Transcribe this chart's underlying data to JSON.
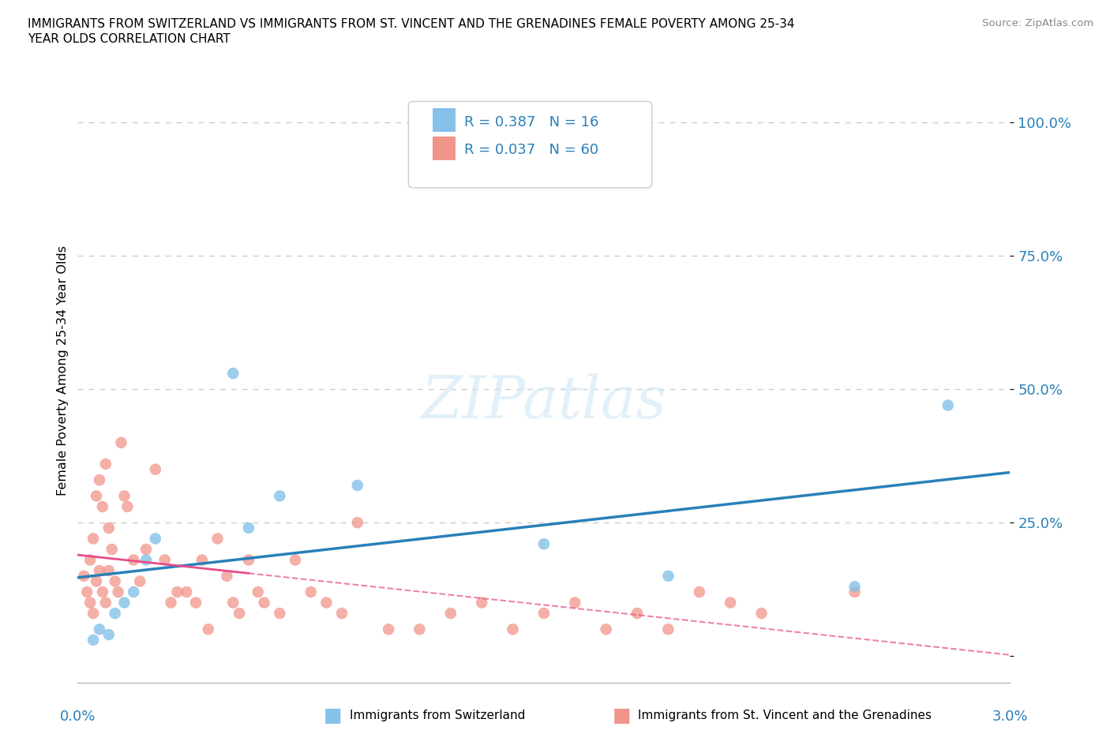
{
  "title_line1": "IMMIGRANTS FROM SWITZERLAND VS IMMIGRANTS FROM ST. VINCENT AND THE GRENADINES FEMALE POVERTY AMONG 25-34",
  "title_line2": "YEAR OLDS CORRELATION CHART",
  "source": "Source: ZipAtlas.com",
  "ylabel": "Female Poverty Among 25-34 Year Olds",
  "xlim": [
    0.0,
    3.0
  ],
  "ylim": [
    -5.0,
    112.0
  ],
  "watermark": "ZIPatlas",
  "legend_label1": "Immigrants from Switzerland",
  "legend_label2": "Immigrants from St. Vincent and the Grenadines",
  "R1": 0.387,
  "N1": 16,
  "R2": 0.037,
  "N2": 60,
  "color1": "#85c1e9",
  "color2": "#f1948a",
  "line_color1": "#2980b9",
  "line_color2": "#e74c8b",
  "swiss_x": [
    0.05,
    0.07,
    0.1,
    0.12,
    0.15,
    0.18,
    0.22,
    0.25,
    0.5,
    0.55,
    0.65,
    0.9,
    1.5,
    1.9,
    2.5,
    2.8
  ],
  "swiss_y": [
    3,
    5,
    4,
    8,
    10,
    12,
    18,
    22,
    53,
    24,
    30,
    32,
    21,
    15,
    13,
    47
  ],
  "stvincent_x": [
    0.02,
    0.03,
    0.04,
    0.04,
    0.05,
    0.05,
    0.06,
    0.06,
    0.07,
    0.07,
    0.08,
    0.08,
    0.09,
    0.09,
    0.1,
    0.1,
    0.11,
    0.12,
    0.13,
    0.14,
    0.15,
    0.16,
    0.18,
    0.2,
    0.22,
    0.25,
    0.28,
    0.3,
    0.32,
    0.35,
    0.38,
    0.4,
    0.42,
    0.45,
    0.48,
    0.5,
    0.52,
    0.55,
    0.58,
    0.6,
    0.65,
    0.7,
    0.75,
    0.8,
    0.85,
    0.9,
    1.0,
    1.1,
    1.2,
    1.3,
    1.4,
    1.5,
    1.6,
    1.7,
    1.8,
    1.9,
    2.0,
    2.1,
    2.2,
    2.5
  ],
  "stvincent_y": [
    15,
    12,
    18,
    10,
    22,
    8,
    30,
    14,
    33,
    16,
    28,
    12,
    10,
    36,
    16,
    24,
    20,
    14,
    12,
    40,
    30,
    28,
    18,
    14,
    20,
    35,
    18,
    10,
    12,
    12,
    10,
    18,
    5,
    22,
    15,
    10,
    8,
    18,
    12,
    10,
    8,
    18,
    12,
    10,
    8,
    25,
    5,
    5,
    8,
    10,
    5,
    8,
    10,
    5,
    8,
    5,
    12,
    10,
    8,
    12
  ],
  "pink_solid_end": 0.55,
  "ytick_positions": [
    0,
    25,
    50,
    75,
    100
  ],
  "ytick_labels": [
    "",
    "25.0%",
    "50.0%",
    "75.0%",
    "100.0%"
  ]
}
